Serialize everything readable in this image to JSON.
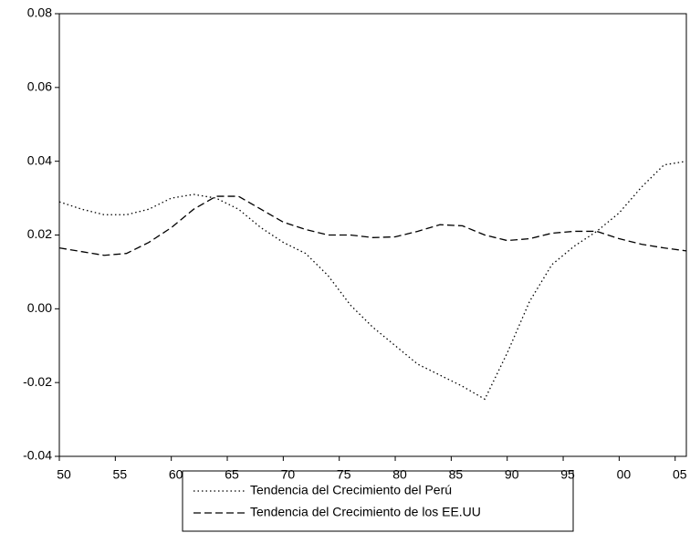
{
  "chart_data": {
    "type": "line",
    "x": [
      1950,
      1952,
      1954,
      1956,
      1958,
      1960,
      1962,
      1964,
      1966,
      1968,
      1970,
      1972,
      1974,
      1976,
      1978,
      1980,
      1982,
      1984,
      1986,
      1988,
      1990,
      1992,
      1994,
      1996,
      1998,
      2000,
      2002,
      2004,
      2006
    ],
    "series": [
      {
        "name": "Tendencia del Crecimiento del Perú",
        "color": "#000000",
        "dash": "dotted",
        "values": [
          0.029,
          0.027,
          0.0255,
          0.0255,
          0.027,
          0.03,
          0.031,
          0.03,
          0.027,
          0.022,
          0.018,
          0.015,
          0.009,
          0.001,
          -0.005,
          -0.01,
          -0.015,
          -0.018,
          -0.021,
          -0.0245,
          -0.012,
          0.002,
          0.012,
          0.017,
          0.021,
          0.026,
          0.033,
          0.039,
          0.04
        ]
      },
      {
        "name": "Tendencia del Crecimiento de los EE.UU",
        "color": "#000000",
        "dash": "dashed",
        "values": [
          0.0165,
          0.0155,
          0.0145,
          0.015,
          0.018,
          0.022,
          0.027,
          0.0305,
          0.0305,
          0.027,
          0.0235,
          0.0215,
          0.02,
          0.02,
          0.0193,
          0.0195,
          0.021,
          0.0228,
          0.0225,
          0.02,
          0.0185,
          0.019,
          0.0205,
          0.021,
          0.021,
          0.019,
          0.0175,
          0.0165,
          0.0157
        ]
      }
    ],
    "xlim": [
      1950,
      2006
    ],
    "xticks": [
      {
        "value": 1950,
        "label": "50"
      },
      {
        "value": 1955,
        "label": "55"
      },
      {
        "value": 1960,
        "label": "60"
      },
      {
        "value": 1965,
        "label": "65"
      },
      {
        "value": 1970,
        "label": "70"
      },
      {
        "value": 1975,
        "label": "75"
      },
      {
        "value": 1980,
        "label": "80"
      },
      {
        "value": 1985,
        "label": "85"
      },
      {
        "value": 1990,
        "label": "90"
      },
      {
        "value": 1995,
        "label": "95"
      },
      {
        "value": 2000,
        "label": "00"
      },
      {
        "value": 2005,
        "label": "05"
      }
    ],
    "ylim": [
      -0.04,
      0.08
    ],
    "yticks": [
      -0.04,
      -0.02,
      {
        "value": 0,
        "label": "0.00"
      },
      0.02,
      0.04,
      0.06,
      0.08
    ],
    "grid": false
  }
}
